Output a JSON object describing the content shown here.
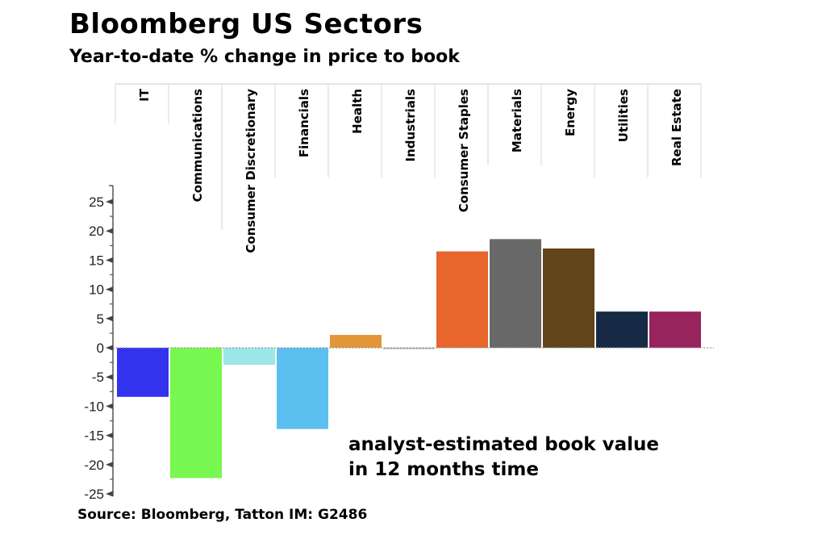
{
  "chart_data": {
    "type": "bar",
    "title": "Bloomberg US Sectors",
    "subtitle": "Year-to-date % change in price to book",
    "xlabel": "",
    "ylabel": "",
    "categories": [
      "IT",
      "Communications",
      "Consumer Discretionary",
      "Financials",
      "Health",
      "Industrials",
      "Consumer Staples",
      "Materials",
      "Energy",
      "Utilities",
      "Real Estate"
    ],
    "values": [
      -8.4,
      -22.3,
      -2.9,
      -13.9,
      2.2,
      -0.2,
      16.5,
      18.6,
      17.0,
      6.2,
      6.2
    ],
    "colors": [
      "#3333ee",
      "#77f74f",
      "#9be6e8",
      "#5bbff0",
      "#e39638",
      "#a9a9a9",
      "#e8652b",
      "#686868",
      "#614418",
      "#172a45",
      "#98245e"
    ],
    "ylim": [
      -25,
      25
    ],
    "yticks": [
      25,
      20,
      15,
      10,
      5,
      0,
      -5,
      -10,
      -15,
      -20,
      -25
    ],
    "ytick_labels": [
      "25",
      "20",
      "15",
      "10",
      "5",
      "0",
      "-5",
      "-10",
      "-15",
      "-20",
      "-25"
    ],
    "grid": false,
    "category_label_placement": "top-rotated",
    "annotation": [
      "analyst-estimated book value",
      "in 12 months time"
    ],
    "source": "Source: Bloomberg, Tatton IM: G2486"
  }
}
